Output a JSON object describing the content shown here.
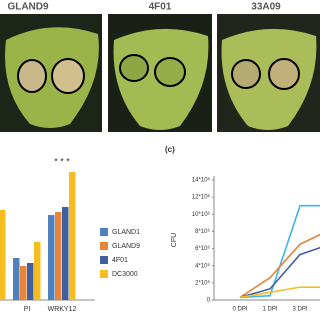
{
  "photos": {
    "labels": [
      "GLAND9",
      "4F01",
      "33A09"
    ]
  },
  "chart_data": [
    {
      "type": "bar",
      "categories": [
        null,
        "PI",
        "WRKY12"
      ],
      "series": [
        {
          "name": "GLAND1",
          "color": "#4f81bd",
          "values": [
            null,
            4.2,
            8.5
          ]
        },
        {
          "name": "GLAND9",
          "color": "#e8843a",
          "values": [
            null,
            3.4,
            8.8
          ]
        },
        {
          "name": "4F01",
          "color": "#3f5f9e",
          "values": [
            null,
            3.7,
            9.3
          ]
        },
        {
          "name": "DC3000",
          "color": "#f5bd1f",
          "values": [
            9.0,
            5.8,
            12.8
          ]
        }
      ],
      "ylim": [
        0,
        14
      ],
      "annotations": [
        "* * *"
      ]
    },
    {
      "type": "line",
      "panel_label": "(c)",
      "y_label": "CFU",
      "categories": [
        "0 DPI",
        "1 DPI",
        "3 DPI",
        null
      ],
      "series": [
        {
          "color": "#3cb4e6",
          "values": [
            300000,
            500000,
            11000000,
            11000000
          ]
        },
        {
          "color": "#e8843a",
          "values": [
            300000,
            2600000,
            6500000,
            8200000
          ]
        },
        {
          "color": "#3f5f9e",
          "values": [
            300000,
            1300000,
            5300000,
            6500000
          ]
        },
        {
          "color": "#f5bd1f",
          "values": [
            300000,
            900000,
            1500000,
            1500000
          ]
        }
      ],
      "ylim": [
        0,
        14000000
      ],
      "yticks": [
        0,
        {
          "value": 2000000,
          "label": "2*10⁶"
        },
        {
          "value": 4000000,
          "label": "4*10⁶"
        },
        {
          "value": 6000000,
          "label": "6*10⁶"
        },
        {
          "value": 8000000,
          "label": "8*10⁶"
        },
        {
          "value": 10000000,
          "label": "10*10⁶"
        },
        {
          "value": 12000000,
          "label": "12*10⁶"
        },
        {
          "value": 14000000,
          "label": "14*10⁶"
        }
      ]
    }
  ]
}
